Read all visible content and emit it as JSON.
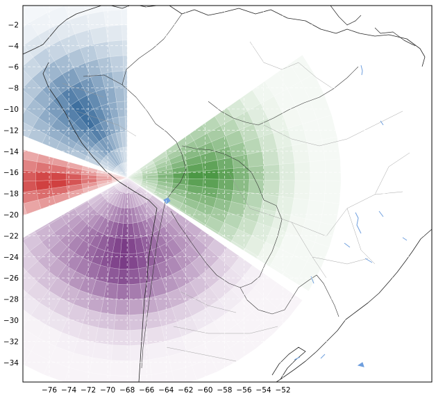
{
  "chart_data": {
    "type": "heatmap",
    "title": "",
    "xlabel": "",
    "ylabel": "",
    "center": {
      "lon": -68,
      "lat": -16.5
    },
    "x_ticks": [
      -76,
      -74,
      -72,
      -70,
      -68,
      -66,
      -64,
      -62,
      -60,
      -58,
      -56,
      -54,
      -52
    ],
    "y_ticks": [
      -2,
      -4,
      -6,
      -8,
      -10,
      -12,
      -14,
      -16,
      -18,
      -20,
      -22,
      -24,
      -26,
      -28,
      -30,
      -32,
      -34
    ],
    "x_tick_labels": [
      "−76",
      "−74",
      "−72",
      "−70",
      "−68",
      "−66",
      "−64",
      "−62",
      "−60",
      "−58",
      "−56",
      "−54",
      "−52"
    ],
    "y_tick_labels": [
      "−2",
      "−4",
      "−6",
      "−8",
      "−10",
      "−12",
      "−14",
      "−16",
      "−18",
      "−20",
      "−22",
      "−24",
      "−26",
      "−28",
      "−30",
      "−32",
      "−34"
    ],
    "grid": true,
    "sectors": [
      {
        "color": "#2f6497",
        "bearing_from": 292,
        "bearing_to": 360
      },
      {
        "color": "#3d8f35",
        "bearing_from": 55,
        "bearing_to": 122
      },
      {
        "color": "#6f2b7c",
        "bearing_from": 125,
        "bearing_to": 240
      },
      {
        "color": "#c81e1e",
        "bearing_from": 250,
        "bearing_to": 285
      }
    ]
  },
  "colors": {
    "land_border": "#222222",
    "internal_border": "#9a9a9a",
    "lakes": "#6f9fde",
    "frame": "#000000"
  }
}
